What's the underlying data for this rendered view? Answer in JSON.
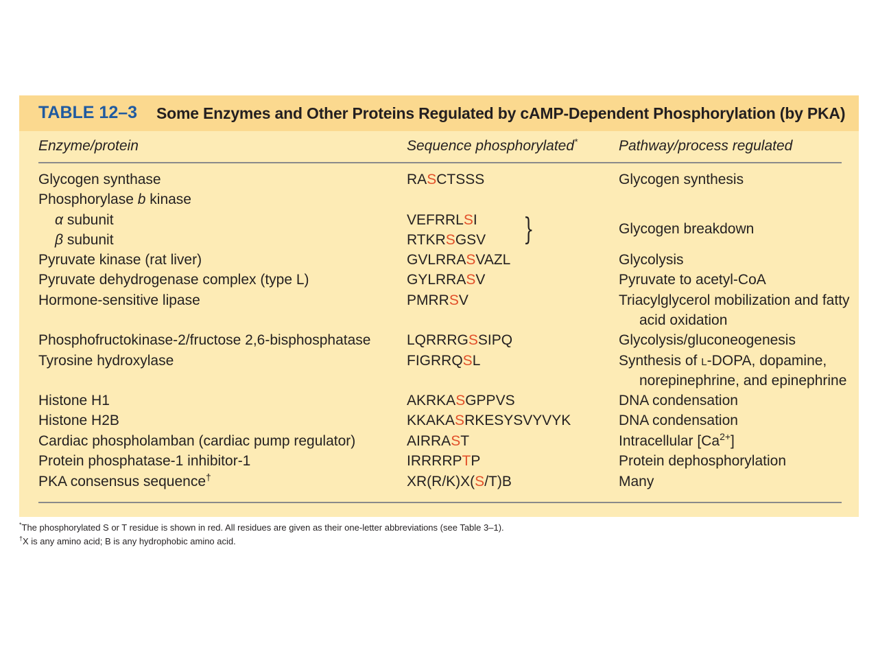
{
  "table": {
    "number": "TABLE 12–3",
    "title": "Some Enzymes and Other Proteins Regulated by cAMP-Dependent Phosphorylation (by PKA)",
    "columns": {
      "enzyme": "Enzyme/protein",
      "sequence": "Sequence phosphorylated",
      "sequence_mark": "*",
      "pathway": "Pathway/process regulated"
    },
    "rows": [
      {
        "enzyme": "Glycogen synthase",
        "seq_pre": "RA",
        "seq_red": "S",
        "seq_post": "CTSSS",
        "pathway": "Glycogen synthesis"
      },
      {
        "enzyme_pre": "Phosphorylase ",
        "enzyme_italic": "b",
        "enzyme_post": " kinase"
      },
      {
        "greek": "α",
        "enzyme": " subunit",
        "seq_pre": "VEFRRL",
        "seq_red": "S",
        "seq_post": "I"
      },
      {
        "greek": "β",
        "enzyme": " subunit",
        "seq_pre": "RTKR",
        "seq_red": "S",
        "seq_post": "GSV"
      },
      {
        "enzyme": "Pyruvate kinase (rat liver)",
        "seq_pre": "GVLRRA",
        "seq_red": "S",
        "seq_post": "VAZL",
        "pathway": "Glycolysis"
      },
      {
        "enzyme": "Pyruvate dehydrogenase complex (type L)",
        "seq_pre": "GYLRRA",
        "seq_red": "S",
        "seq_post": "V",
        "pathway": "Pyruvate to acetyl-CoA"
      },
      {
        "enzyme": "Hormone-sensitive lipase",
        "seq_pre": "PMRR",
        "seq_red": "S",
        "seq_post": "V",
        "pathway": "Triacylglycerol mobilization and fatty",
        "pathway2": "acid oxidation"
      },
      {
        "enzyme": "Phosphofructokinase-2/fructose 2,6-bisphosphatase",
        "seq_pre": "LQRRRG",
        "seq_red": "S",
        "seq_post": "SIPQ",
        "pathway": "Glycolysis/gluconeogenesis"
      },
      {
        "enzyme": "Tyrosine hydroxylase",
        "seq_pre": "FIGRRQ",
        "seq_red": "S",
        "seq_post": "L",
        "pathway_pre": "Synthesis of ",
        "pathway_sc": "L",
        "pathway_post": "-DOPA, dopamine,",
        "pathway2": "norepinephrine, and epinephrine"
      },
      {
        "enzyme": "Histone H1",
        "seq_pre": "AKRKA",
        "seq_red": "S",
        "seq_post": "GPPVS",
        "pathway": "DNA condensation"
      },
      {
        "enzyme": "Histone H2B",
        "seq_pre": "KKAKA",
        "seq_red": "S",
        "seq_post": "RKESYSVYVYK",
        "pathway": "DNA condensation"
      },
      {
        "enzyme": "Cardiac phospholamban (cardiac pump regulator)",
        "seq_pre": "AIRRA",
        "seq_red": "S",
        "seq_post": "T",
        "pathway_pre": "Intracellular [Ca",
        "pathway_sup": "2+",
        "pathway_post": "]"
      },
      {
        "enzyme": "Protein phosphatase-1 inhibitor-1",
        "seq_pre": "IRRRRP",
        "seq_red": "T",
        "seq_post": "P",
        "pathway": "Protein dephosphorylation"
      },
      {
        "enzyme": "PKA consensus sequence",
        "enzyme_mark": "†",
        "seq_pre": "XR(R/K)X(",
        "seq_red": "S",
        "seq_post": "/T)B",
        "pathway": "Many"
      }
    ],
    "shared_pathway": "Glycogen breakdown",
    "brace_glyph": "}"
  },
  "footnotes": [
    {
      "mark": "*",
      "text": "The phosphorylated S or T residue is shown in red. All residues are given as their one-letter abbreviations (see Table 3–1)."
    },
    {
      "mark": "†",
      "text": "X is any amino acid; B is any hydrophobic amino acid."
    }
  ],
  "colors": {
    "accent": "#1f5aa0",
    "header_band": "#fbd98f",
    "table_bg": "#fdebb5",
    "phospho_red": "#e2502a"
  }
}
